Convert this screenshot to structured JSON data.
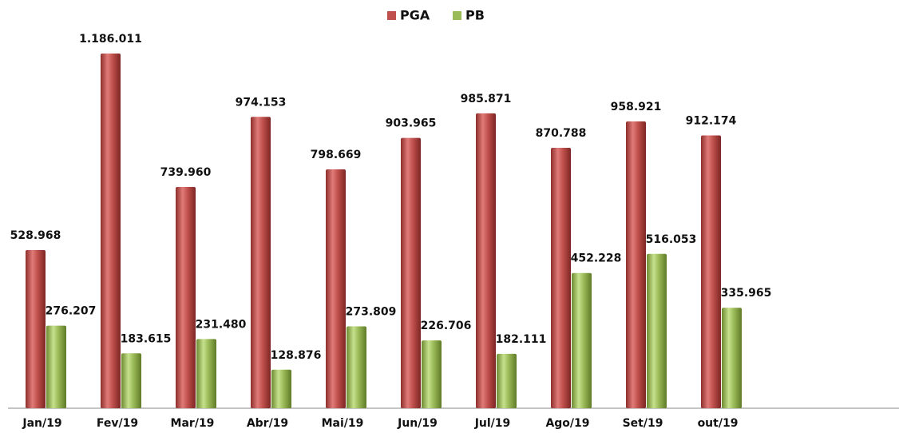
{
  "chart_data": {
    "type": "bar",
    "categories": [
      "Jan/19",
      "Fev/19",
      "Mar/19",
      "Abr/19",
      "Mai/19",
      "Jun/19",
      "Jul/19",
      "Ago/19",
      "Set/19",
      "out/19"
    ],
    "series": [
      {
        "name": "PGA",
        "color": "#c0504d",
        "values": [
          528968,
          1186011,
          739960,
          974153,
          798669,
          903965,
          985871,
          870788,
          958921,
          912174
        ],
        "value_labels": [
          "528.968",
          "1.186.011",
          "739.960",
          "974.153",
          "798.669",
          "903.965",
          "985.871",
          "870.788",
          "958.921",
          "912.174"
        ]
      },
      {
        "name": "PB",
        "color": "#9bbb59",
        "values": [
          276207,
          183615,
          231480,
          128876,
          273809,
          226706,
          182111,
          452228,
          516053,
          335965
        ],
        "value_labels": [
          "276.207",
          "183.615",
          "231.480",
          "128.876",
          "273.809",
          "226.706",
          "182.111",
          "452.228",
          "516.053",
          "335.965"
        ]
      }
    ],
    "legend": "top"
  }
}
